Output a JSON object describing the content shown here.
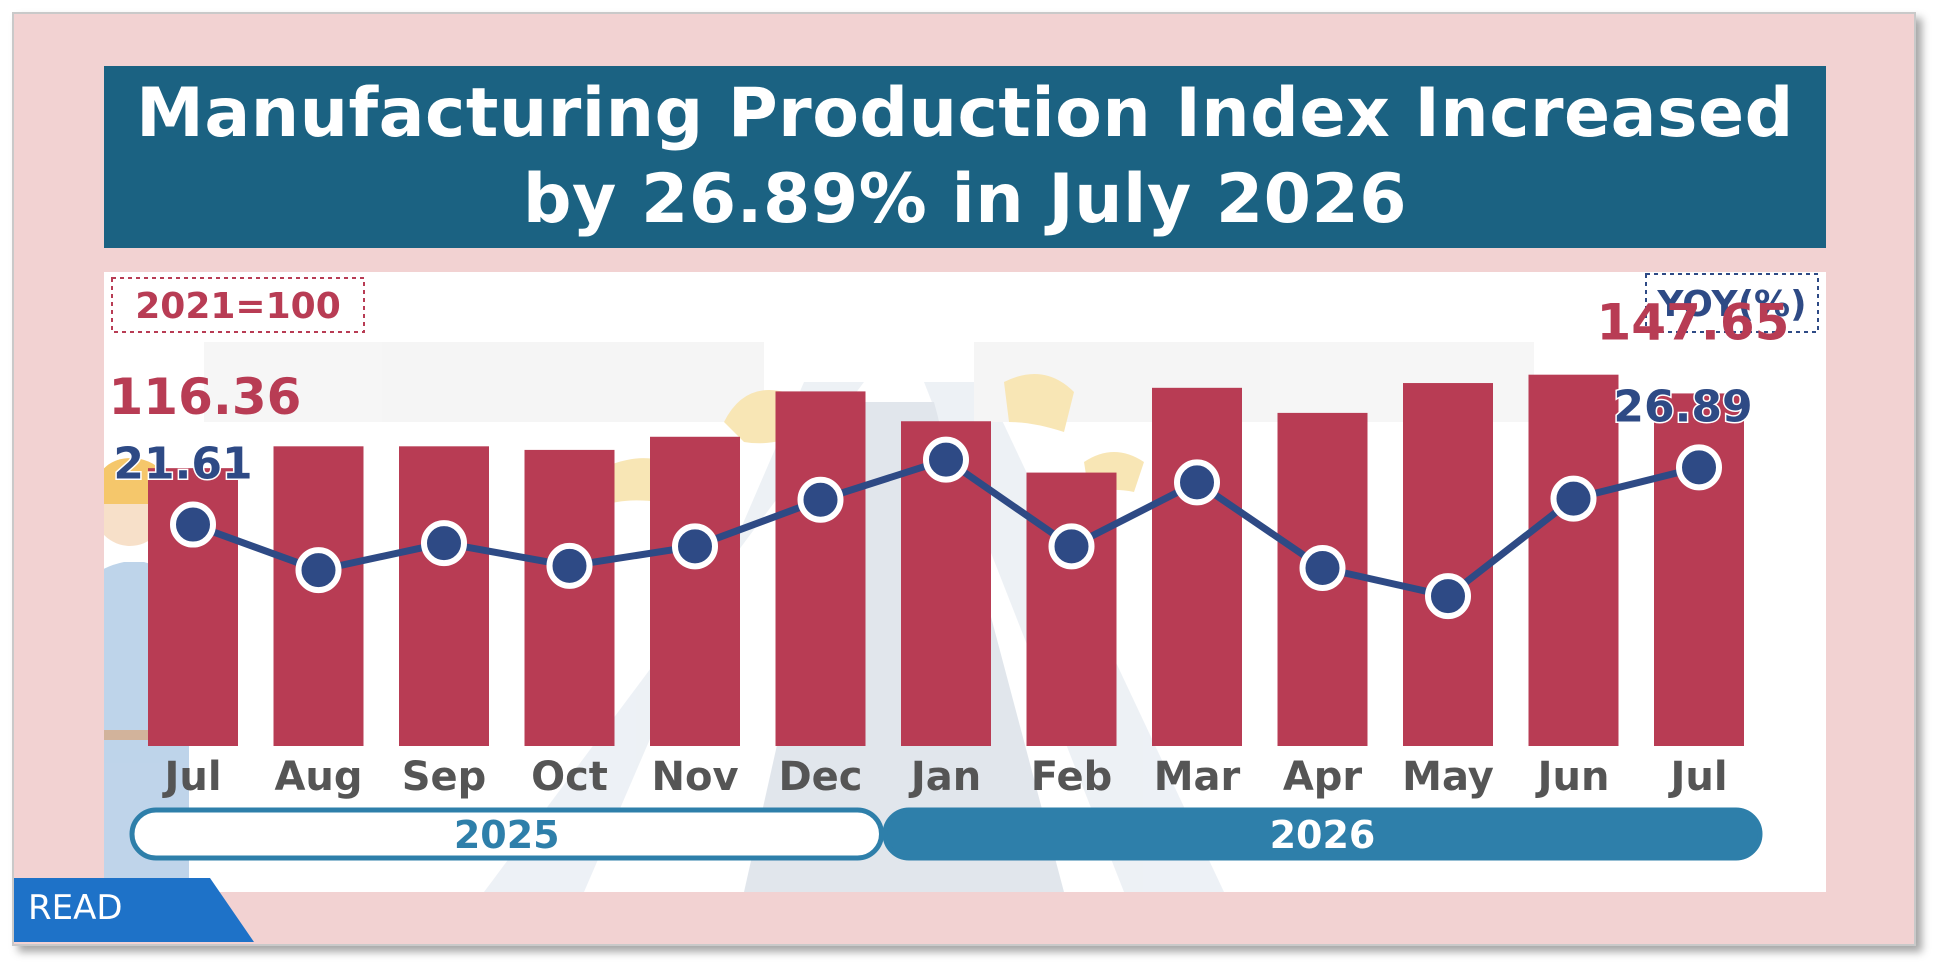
{
  "title": "Manufacturing Production Index Increased\nby 26.89% in July 2026",
  "badges": {
    "base": "2021=100",
    "yoy": "YOY(%)"
  },
  "read_label": "READ",
  "chart_data": {
    "type": "bar",
    "categories": [
      "Jul",
      "Aug",
      "Sep",
      "Oct",
      "Nov",
      "Dec",
      "Jan",
      "Feb",
      "Mar",
      "Apr",
      "May",
      "Jun",
      "Jul"
    ],
    "years": [
      {
        "label": "2025",
        "from": 0,
        "to": 5
      },
      {
        "label": "2026",
        "from": 6,
        "to": 12
      }
    ],
    "series": [
      {
        "type": "bar",
        "values": [
          116.36,
          125.5,
          125.5,
          124.0,
          129.5,
          148.5,
          136.0,
          114.5,
          150.0,
          139.5,
          152.0,
          155.5,
          147.65
        ]
      },
      {
        "type": "line",
        "values": [
          21.61,
          17.4,
          19.9,
          17.8,
          19.6,
          23.9,
          27.6,
          19.6,
          25.5,
          17.6,
          15.0,
          24.0,
          26.89
        ]
      }
    ],
    "labeled_points": [
      {
        "series": 0,
        "index": 0,
        "label": "116.36"
      },
      {
        "series": 0,
        "index": 12,
        "label": "147.65"
      },
      {
        "series": 1,
        "index": 0,
        "label": "21.61"
      },
      {
        "series": 1,
        "index": 12,
        "label": "26.89"
      }
    ],
    "bar_range": [
      0,
      165
    ],
    "line_range": [
      8,
      32
    ],
    "colors": {
      "bar": "#b83c54",
      "line": "#2e4a85",
      "bar_label": "#b83c54",
      "line_label": "#2e4a85",
      "axis_text": "#555555",
      "year_fill_2026": "#2e7faa",
      "year_text_2025": "#2e7faa",
      "title_bg": "#1b6282"
    }
  }
}
